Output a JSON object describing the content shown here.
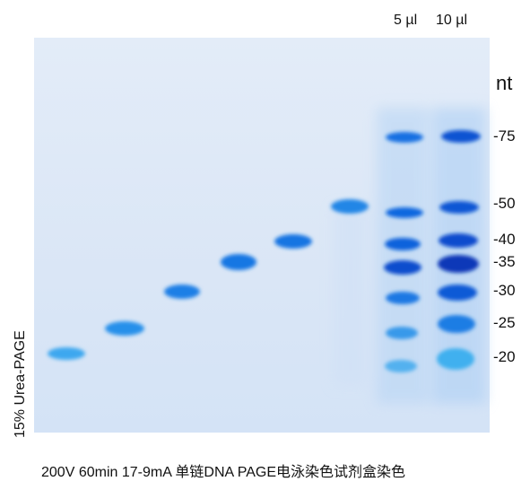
{
  "gel": {
    "lane_headers": [
      {
        "label": "5 µl"
      },
      {
        "label": "10 µl"
      }
    ],
    "unit": "nt",
    "markers": [
      {
        "label": "-75"
      },
      {
        "label": "-50"
      },
      {
        "label": "-40"
      },
      {
        "label": "-35"
      },
      {
        "label": "-30"
      },
      {
        "label": "-25"
      },
      {
        "label": "-20"
      }
    ],
    "side_label": "15% Urea-PAGE",
    "caption": "200V 60min 17-9mA 单链DNA PAGE电泳染色试剂盒染色",
    "colors": {
      "gel_background": "#dfe9f7",
      "band_dark": "#0b49c8",
      "band_mid": "#1d77e3",
      "band_light": "#45b3f0"
    }
  }
}
